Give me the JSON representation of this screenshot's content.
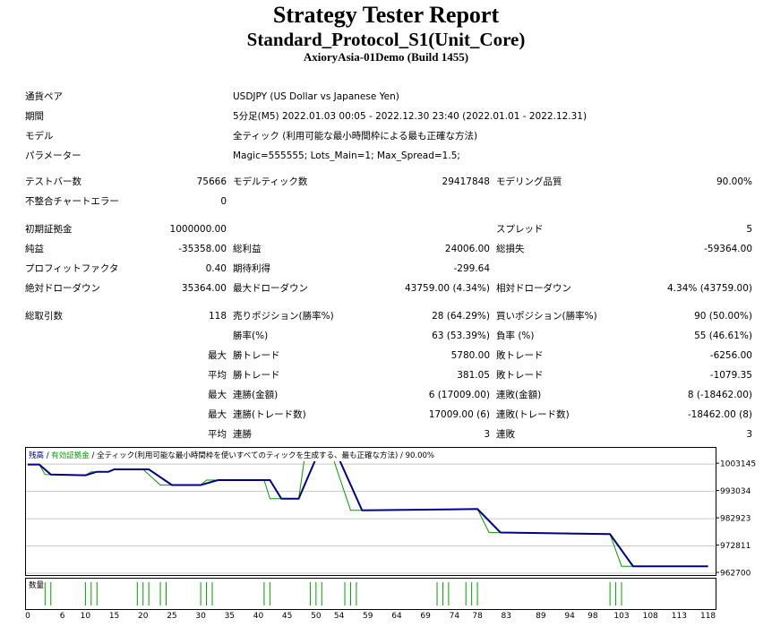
{
  "header": {
    "title": "Strategy Tester Report",
    "subtitle": "Standard_Protocol_S1(Unit_Core)",
    "server": "AxioryAsia-01Demo (Build 1455)"
  },
  "info": {
    "symbol_label": "通貨ペア",
    "symbol_value": "USDJPY (US Dollar vs Japanese Yen)",
    "period_label": "期間",
    "period_value": "5分足(M5) 2022.01.03 00:05 - 2022.12.30 23:40 (2022.01.01 - 2022.12.31)",
    "model_label": "モデル",
    "model_value": "全ティック (利用可能な最小時間枠による最も正確な方法)",
    "params_label": "パラメーター",
    "params_value": "Magic=555555; Lots_Main=1; Max_Spread=1.5;"
  },
  "stats": {
    "bars_label": "テストバー数",
    "bars_value": "75666",
    "ticks_label": "モデルティック数",
    "ticks_value": "29417848",
    "quality_label": "モデリング品質",
    "quality_value": "90.00%",
    "mismatch_label": "不整合チャートエラー",
    "mismatch_value": "0",
    "deposit_label": "初期証拠金",
    "deposit_value": "1000000.00",
    "spread_label": "スプレッド",
    "spread_value": "5",
    "net_label": "純益",
    "net_value": "-35358.00",
    "gross_profit_label": "総利益",
    "gross_profit_value": "24006.00",
    "gross_loss_label": "総損失",
    "gross_loss_value": "-59364.00",
    "pf_label": "プロフィットファクタ",
    "pf_value": "0.40",
    "payoff_label": "期待利得",
    "payoff_value": "-299.64",
    "abs_dd_label": "絶対ドローダウン",
    "abs_dd_value": "35364.00",
    "max_dd_label": "最大ドローダウン",
    "max_dd_value": "43759.00 (4.34%)",
    "rel_dd_label": "相対ドローダウン",
    "rel_dd_value": "4.34% (43759.00)",
    "trades_label": "総取引数",
    "trades_value": "118",
    "short_label": "売りポジション(勝率%)",
    "short_value": "28 (64.29%)",
    "long_label": "買いポジション(勝率%)",
    "long_value": "90 (50.00%)",
    "win_label": "勝率(%)",
    "win_value": "63 (53.39%)",
    "loss_label": "負率 (%)",
    "loss_value": "55 (46.61%)",
    "max_prefix": "最大",
    "avg_prefix": "平均",
    "largest_win_label": "勝トレード",
    "largest_win_value": "5780.00",
    "largest_loss_label": "敗トレード",
    "largest_loss_value": "-6256.00",
    "avg_win_label": "勝トレード",
    "avg_win_value": "381.05",
    "avg_loss_label": "敗トレード",
    "avg_loss_value": "-1079.35",
    "max_consec_wins_label": "連勝(金額)",
    "max_consec_wins_value": "6 (17009.00)",
    "max_consec_losses_label": "連敗(金額)",
    "max_consec_losses_value": "8 (-18462.00)",
    "max_consec_profit_label": "連勝(トレード数)",
    "max_consec_profit_value": "17009.00 (6)",
    "max_consec_loss_label": "連敗(トレード数)",
    "max_consec_loss_value": "-18462.00 (8)",
    "avg_consec_wins_label": "連勝",
    "avg_consec_wins_value": "3",
    "avg_consec_losses_label": "連敗",
    "avg_consec_losses_value": "3"
  },
  "chart_legend": {
    "balance": "残高",
    "sep1": " / ",
    "equity": "有効証拠金",
    "sep2": " / ",
    "model": "全ティック(利用可能な最小時間枠を使いすべてのティックを生成する、最も正確な方法)",
    "sep3": " / ",
    "quality": "90.00%"
  },
  "volume_label": "数量",
  "colors": {
    "balance": "#00008b",
    "equity": "#00a000",
    "grid": "#c8c8c8"
  },
  "chart_data": {
    "type": "line",
    "ylim": [
      962700,
      1008500
    ],
    "yticks": [
      1003145,
      993034,
      982923,
      972811,
      962700
    ],
    "xticks": [
      0,
      6,
      10,
      15,
      20,
      25,
      30,
      35,
      40,
      45,
      50,
      54,
      59,
      64,
      69,
      74,
      78,
      83,
      89,
      94,
      98,
      103,
      108,
      113,
      118
    ],
    "xmax": 119,
    "series": [
      {
        "name": "残高",
        "points": [
          [
            0,
            1003000
          ],
          [
            2,
            1003000
          ],
          [
            4,
            999300
          ],
          [
            10,
            999000
          ],
          [
            12,
            1000300
          ],
          [
            14,
            1000300
          ],
          [
            15,
            1001200
          ],
          [
            21,
            1001200
          ],
          [
            25,
            995400
          ],
          [
            30,
            995400
          ],
          [
            33,
            997200
          ],
          [
            42,
            997200
          ],
          [
            44,
            990300
          ],
          [
            47,
            990300
          ],
          [
            50,
            1005200
          ],
          [
            52,
            1005200
          ],
          [
            54,
            1005000
          ],
          [
            58,
            986000
          ],
          [
            78,
            986500
          ],
          [
            82,
            977800
          ],
          [
            101,
            977200
          ],
          [
            105,
            965300
          ],
          [
            118,
            965300
          ]
        ]
      },
      {
        "name": "有効証拠金",
        "points": [
          [
            0,
            1003000
          ],
          [
            2,
            1003000
          ],
          [
            3,
            999300
          ],
          [
            10,
            999000
          ],
          [
            11,
            1000300
          ],
          [
            14,
            1000300
          ],
          [
            15,
            1001200
          ],
          [
            20,
            1001200
          ],
          [
            23,
            995400
          ],
          [
            30,
            995400
          ],
          [
            31,
            997200
          ],
          [
            41,
            997200
          ],
          [
            42,
            990300
          ],
          [
            47,
            990300
          ],
          [
            48,
            1005200
          ],
          [
            52,
            1005200
          ],
          [
            53,
            1005000
          ],
          [
            56,
            986000
          ],
          [
            78,
            986500
          ],
          [
            80,
            977800
          ],
          [
            101,
            977200
          ],
          [
            103,
            965300
          ],
          [
            118,
            965300
          ]
        ]
      }
    ],
    "volume_bars": [
      3,
      4,
      10,
      11,
      12,
      19,
      20,
      21,
      23,
      24,
      30,
      31,
      32,
      41,
      42,
      49,
      50,
      51,
      55,
      56,
      57,
      71,
      72,
      73,
      76,
      77,
      78,
      101,
      102,
      103
    ]
  }
}
